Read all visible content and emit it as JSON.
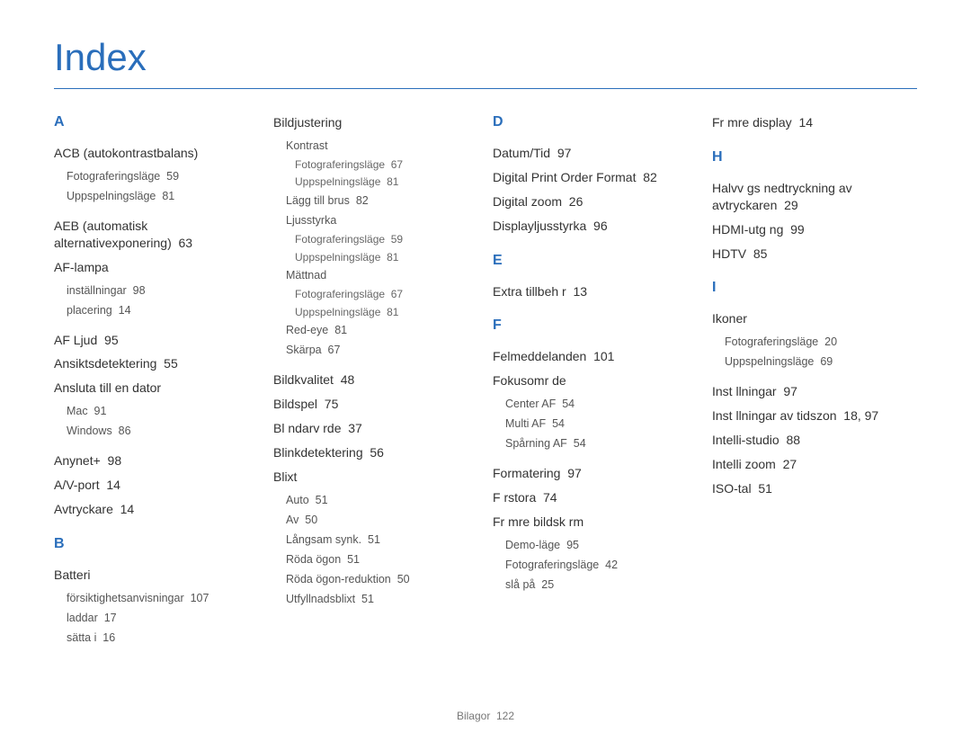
{
  "title": "Index",
  "footer": {
    "label": "Bilagor",
    "page": "122"
  },
  "columns": [
    [
      {
        "type": "letter",
        "text": "A"
      },
      {
        "type": "block",
        "main": "ACB (autokontrastbalans)",
        "subs": [
          {
            "label": "Fotograferingsläge",
            "page": "59"
          },
          {
            "label": "Uppspelningsläge",
            "page": "81"
          }
        ]
      },
      {
        "type": "main",
        "label": "AEB (automatisk alternativexponering)",
        "page": "63"
      },
      {
        "type": "block",
        "main": "AF-lampa",
        "subs": [
          {
            "label": "inställningar",
            "page": "98"
          },
          {
            "label": "placering",
            "page": "14"
          }
        ]
      },
      {
        "type": "main",
        "label": "AF Ljud",
        "page": "95"
      },
      {
        "type": "main",
        "label": "Ansiktsdetektering",
        "page": "55"
      },
      {
        "type": "block",
        "main": "Ansluta till en dator",
        "subs": [
          {
            "label": "Mac",
            "page": "91"
          },
          {
            "label": "Windows",
            "page": "86"
          }
        ]
      },
      {
        "type": "main",
        "label": "Anynet+",
        "page": "98"
      },
      {
        "type": "main",
        "label": "A/V-port",
        "page": "14"
      },
      {
        "type": "main",
        "label": "Avtryckare",
        "page": "14"
      },
      {
        "type": "letter",
        "text": "B",
        "mt": true
      },
      {
        "type": "block",
        "main": "Batteri",
        "subs": [
          {
            "label": "försiktighetsanvisningar",
            "page": "107"
          },
          {
            "label": "laddar",
            "page": "17"
          },
          {
            "label": "sätta i",
            "page": "16"
          }
        ]
      }
    ],
    [
      {
        "type": "nested",
        "main": "Bildjustering",
        "groups": [
          {
            "head": "Kontrast",
            "subs": [
              {
                "label": "Fotograferingsläge",
                "page": "67"
              },
              {
                "label": "Uppspelningsläge",
                "page": "81"
              }
            ]
          },
          {
            "head": {
              "label": "Lägg till brus",
              "page": "82"
            }
          },
          {
            "head": "Ljusstyrka",
            "subs": [
              {
                "label": "Fotograferingsläge",
                "page": "59"
              },
              {
                "label": "Uppspelningsläge",
                "page": "81"
              }
            ]
          },
          {
            "head": "Mättnad",
            "subs": [
              {
                "label": "Fotograferingsläge",
                "page": "67"
              },
              {
                "label": "Uppspelningsläge",
                "page": "81"
              }
            ]
          },
          {
            "head": {
              "label": "Red-eye",
              "page": "81"
            }
          },
          {
            "head": {
              "label": "Skärpa",
              "page": "67"
            }
          }
        ]
      },
      {
        "type": "main",
        "label": "Bildkvalitet",
        "page": "48"
      },
      {
        "type": "main",
        "label": "Bildspel",
        "page": "75"
      },
      {
        "type": "main",
        "label": "Bl ndarv rde",
        "page": "37"
      },
      {
        "type": "main",
        "label": "Blinkdetektering",
        "page": "56"
      },
      {
        "type": "block",
        "main": "Blixt",
        "subs": [
          {
            "label": "Auto",
            "page": "51"
          },
          {
            "label": "Av",
            "page": "50"
          },
          {
            "label": "Långsam synk.",
            "page": "51"
          },
          {
            "label": "Röda ögon",
            "page": "51"
          },
          {
            "label": "Röda ögon-reduktion",
            "page": "50"
          },
          {
            "label": "Utfyllnadsblixt",
            "page": "51"
          }
        ]
      }
    ],
    [
      {
        "type": "letter",
        "text": "D"
      },
      {
        "type": "main",
        "label": "Datum/Tid",
        "page": "97"
      },
      {
        "type": "main",
        "label": "Digital Print Order Format",
        "page": "82"
      },
      {
        "type": "main",
        "label": "Digital zoom",
        "page": "26"
      },
      {
        "type": "main",
        "label": "Displayljusstyrka",
        "page": "96"
      },
      {
        "type": "letter",
        "text": "E",
        "mt": true
      },
      {
        "type": "main",
        "label": "Extra tillbeh r",
        "page": "13"
      },
      {
        "type": "letter",
        "text": "F",
        "mt": true
      },
      {
        "type": "main",
        "label": "Felmeddelanden",
        "page": "101"
      },
      {
        "type": "block",
        "main": "Fokusomr de",
        "subs": [
          {
            "label": "Center AF",
            "page": "54"
          },
          {
            "label": "Multi AF",
            "page": "54"
          },
          {
            "label": "Spårning AF",
            "page": "54"
          }
        ]
      },
      {
        "type": "main",
        "label": "Formatering",
        "page": "97"
      },
      {
        "type": "main",
        "label": "F rstora",
        "page": "74"
      },
      {
        "type": "block",
        "main": "Fr mre bildsk rm",
        "subs": [
          {
            "label": "Demo-läge",
            "page": "95"
          },
          {
            "label": "Fotograferingsläge",
            "page": "42"
          },
          {
            "label": "slå på",
            "page": "25"
          }
        ]
      }
    ],
    [
      {
        "type": "main",
        "label": "Fr mre display",
        "page": "14"
      },
      {
        "type": "letter",
        "text": "H",
        "mt": true
      },
      {
        "type": "main",
        "label": "Halvv gs nedtryckning av avtryckaren",
        "page": "29"
      },
      {
        "type": "main",
        "label": "HDMI-utg ng",
        "page": "99"
      },
      {
        "type": "main",
        "label": "HDTV",
        "page": "85"
      },
      {
        "type": "letter",
        "text": "I",
        "mt": true
      },
      {
        "type": "block",
        "main": "Ikoner",
        "subs": [
          {
            "label": "Fotograferingsläge",
            "page": "20"
          },
          {
            "label": "Uppspelningsläge",
            "page": "69"
          }
        ]
      },
      {
        "type": "main",
        "label": "Inst llningar",
        "page": "97"
      },
      {
        "type": "main",
        "label": "Inst llningar av tidszon",
        "page": "18, 97"
      },
      {
        "type": "main",
        "label": "Intelli-studio",
        "page": "88"
      },
      {
        "type": "main",
        "label": "Intelli zoom",
        "page": "27"
      },
      {
        "type": "main",
        "label": "ISO-tal",
        "page": "51"
      }
    ]
  ]
}
